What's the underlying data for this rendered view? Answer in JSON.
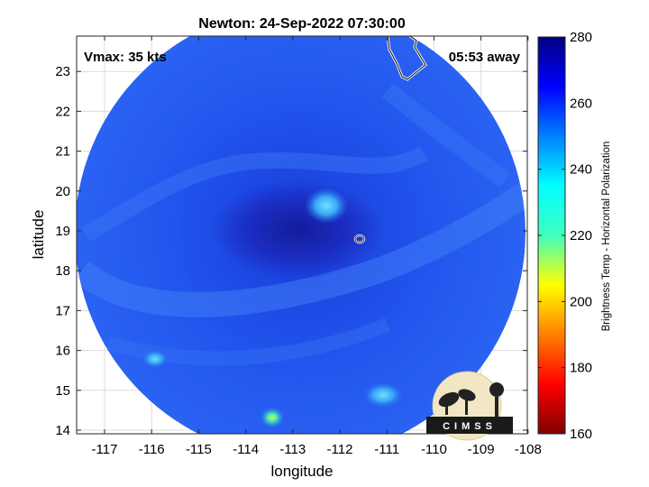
{
  "title": "Newton: 24-Sep-2022 07:30:00",
  "vmax_label": "Vmax: 35 kts",
  "time_away_label": "05:53 away",
  "xlabel": "longitude",
  "ylabel": "latitude",
  "x_ticks": [
    "-117",
    "-116",
    "-115",
    "-114",
    "-113",
    "-112",
    "-111",
    "-110",
    "-109",
    "-108"
  ],
  "y_ticks": [
    "14",
    "15",
    "16",
    "17",
    "18",
    "19",
    "20",
    "21",
    "22",
    "23"
  ],
  "colorbar": {
    "label": "Brightness Temp - Horizontal Polarization",
    "ticks": [
      "160",
      "180",
      "200",
      "220",
      "240",
      "260",
      "280"
    ],
    "range": [
      160,
      280
    ],
    "colormap": "jet"
  },
  "logo_text": "CIMSS",
  "colors": {
    "swath_base": "#1f4ff0",
    "eye_dark": "#1628b0",
    "warm_spot": "#4fc8f0"
  }
}
